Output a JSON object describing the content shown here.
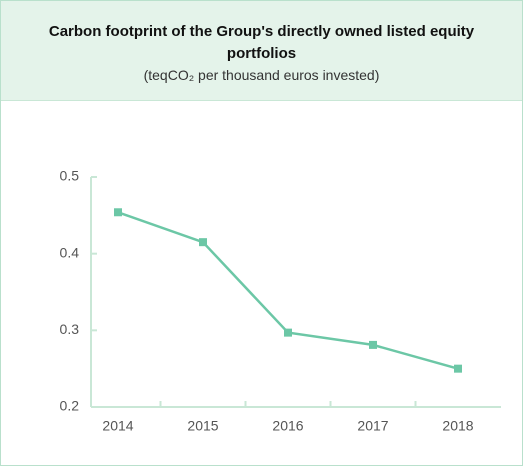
{
  "chart_data": {
    "type": "line",
    "title": "Carbon footprint of the Group's directly owned listed equity portfolios",
    "subtitle": "(teqCO₂ per thousand euros invested)",
    "categories": [
      "2014",
      "2015",
      "2016",
      "2017",
      "2018"
    ],
    "series": [
      {
        "name": "Carbon footprint",
        "color": "#6cc7a6",
        "values": [
          0.454,
          0.415,
          0.297,
          0.281,
          0.25
        ]
      }
    ],
    "ylim": [
      0.2,
      0.5
    ],
    "yticks": [
      0.2,
      0.3,
      0.4,
      0.5
    ]
  }
}
